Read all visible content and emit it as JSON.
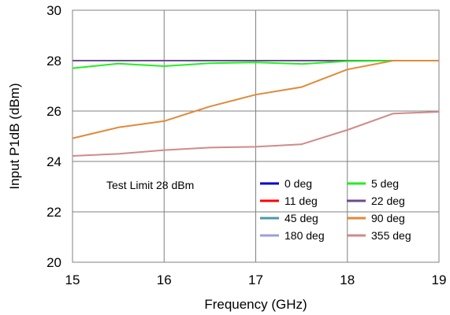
{
  "chart_data": {
    "type": "line",
    "title": "",
    "xlabel": "Frequency (GHz)",
    "ylabel": "Input P1dB (dBm)",
    "xlim": [
      15,
      19
    ],
    "ylim": [
      20,
      30
    ],
    "xticks": [
      15,
      16,
      17,
      18,
      19
    ],
    "yticks": [
      20,
      22,
      24,
      26,
      28,
      30
    ],
    "grid": true,
    "legend_position": "bottom-right",
    "annotation": "Test Limit 28 dBm",
    "x": [
      15,
      15.5,
      16,
      16.5,
      17,
      17.5,
      18,
      18.5,
      19
    ],
    "series": [
      {
        "name": "0 deg",
        "color": "#0000cc",
        "values": [
          28,
          28,
          28,
          28,
          28,
          28,
          28,
          28,
          28
        ]
      },
      {
        "name": "5 deg",
        "color": "#22ee22",
        "values": [
          27.7,
          27.88,
          27.78,
          27.9,
          27.93,
          27.87,
          27.98,
          28,
          28
        ]
      },
      {
        "name": "11 deg",
        "color": "#ff0000",
        "values": [
          28,
          28,
          28,
          28,
          28,
          28,
          28,
          28,
          28
        ]
      },
      {
        "name": "22 deg",
        "color": "#6a4c8c",
        "values": [
          28,
          28,
          28,
          28,
          28,
          28,
          28,
          28,
          28
        ]
      },
      {
        "name": "45 deg",
        "color": "#4a9aa6",
        "values": [
          28,
          28,
          28,
          28,
          28,
          28,
          28,
          28,
          28
        ]
      },
      {
        "name": "90 deg",
        "color": "#e08a3a",
        "values": [
          24.92,
          25.35,
          25.6,
          26.18,
          26.65,
          26.95,
          27.65,
          28,
          28
        ]
      },
      {
        "name": "180 deg",
        "color": "#9aa0d8",
        "values": [
          28,
          28,
          28,
          28,
          28,
          28,
          28,
          28,
          28
        ]
      },
      {
        "name": "355 deg",
        "color": "#d08a8a",
        "values": [
          24.22,
          24.3,
          24.45,
          24.55,
          24.58,
          24.68,
          25.25,
          25.9,
          25.97
        ]
      }
    ]
  }
}
